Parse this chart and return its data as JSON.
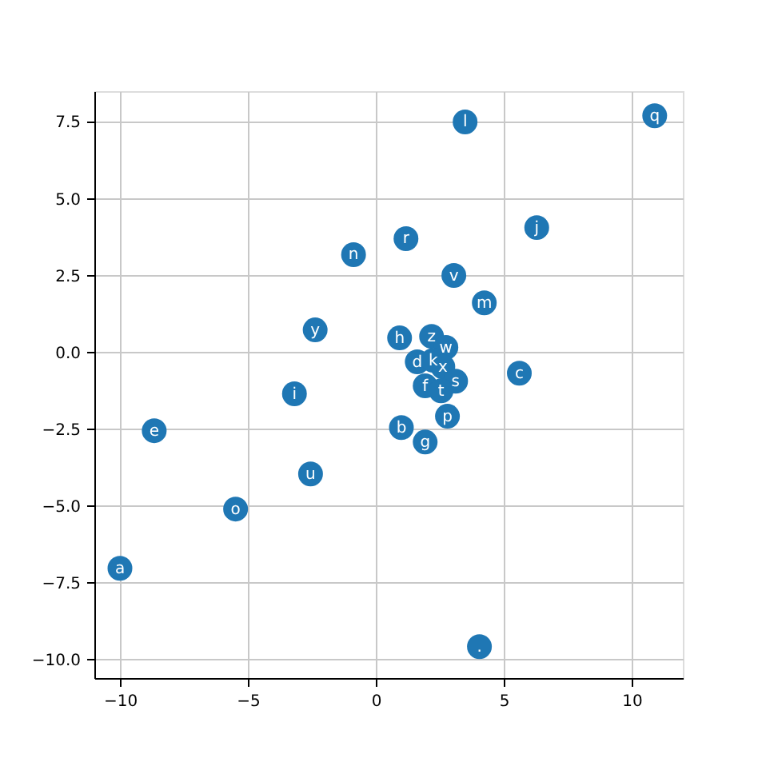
{
  "chart_data": {
    "type": "scatter",
    "marker": "circle",
    "grid": true,
    "xlim": [
      -11,
      12
    ],
    "ylim": [
      -10.6,
      8.5
    ],
    "xticks": [
      {
        "value": -10,
        "label": "−10"
      },
      {
        "value": -5,
        "label": "−5"
      },
      0,
      5,
      10
    ],
    "yticks": [
      {
        "value": -10,
        "label": "−10.0"
      },
      {
        "value": -7.5,
        "label": "−7.5"
      },
      {
        "value": -5,
        "label": "−5.0"
      },
      {
        "value": -2.5,
        "label": "−2.5"
      },
      {
        "value": 0,
        "label": "0.0"
      },
      {
        "value": 2.5,
        "label": "2.5"
      },
      {
        "value": 5,
        "label": "5.0"
      },
      {
        "value": 7.5,
        "label": "7.5"
      }
    ],
    "series": [
      {
        "color": "#1f77b4",
        "x": [
          -10.0,
          -8.66,
          -5.48,
          -2.55,
          -3.18,
          -2.37,
          -0.87,
          1.18,
          3.49,
          10.9,
          6.29,
          3.05,
          4.24,
          0.93,
          2.18,
          2.74,
          1.62,
          2.24,
          2.62,
          3.12,
          5.61,
          1.93,
          2.55,
          2.8,
          1.0,
          1.93,
          4.05
        ],
        "values": [
          -7.03,
          -2.55,
          -5.1,
          -3.96,
          -1.35,
          0.73,
          3.18,
          3.7,
          7.5,
          7.7,
          4.06,
          2.5,
          1.61,
          0.47,
          0.52,
          0.16,
          -0.31,
          -0.26,
          -0.47,
          -0.94,
          -0.68,
          -1.09,
          -1.25,
          -2.08,
          -2.45,
          -2.92,
          -9.58
        ]
      }
    ],
    "annotations": [
      {
        "text": "a",
        "x": -10.0,
        "y": -7.03
      },
      {
        "text": "e",
        "x": -8.66,
        "y": -2.55
      },
      {
        "text": "o",
        "x": -5.48,
        "y": -5.1
      },
      {
        "text": "u",
        "x": -2.55,
        "y": -3.96
      },
      {
        "text": "i",
        "x": -3.18,
        "y": -1.35
      },
      {
        "text": "y",
        "x": -2.37,
        "y": 0.73
      },
      {
        "text": "n",
        "x": -0.87,
        "y": 3.18
      },
      {
        "text": "r",
        "x": 1.18,
        "y": 3.7
      },
      {
        "text": "l",
        "x": 3.49,
        "y": 7.5
      },
      {
        "text": "q",
        "x": 10.9,
        "y": 7.7
      },
      {
        "text": "j",
        "x": 6.29,
        "y": 4.06
      },
      {
        "text": "v",
        "x": 3.05,
        "y": 2.5
      },
      {
        "text": "m",
        "x": 4.24,
        "y": 1.61
      },
      {
        "text": "h",
        "x": 0.93,
        "y": 0.47
      },
      {
        "text": "z",
        "x": 2.18,
        "y": 0.52
      },
      {
        "text": "w",
        "x": 2.74,
        "y": 0.16
      },
      {
        "text": "d",
        "x": 1.62,
        "y": -0.31
      },
      {
        "text": "k",
        "x": 2.24,
        "y": -0.26
      },
      {
        "text": "x",
        "x": 2.62,
        "y": -0.47
      },
      {
        "text": "s",
        "x": 3.12,
        "y": -0.94
      },
      {
        "text": "c",
        "x": 5.61,
        "y": -0.68
      },
      {
        "text": "f",
        "x": 1.93,
        "y": -1.09
      },
      {
        "text": "t",
        "x": 2.55,
        "y": -1.25
      },
      {
        "text": "p",
        "x": 2.8,
        "y": -2.08
      },
      {
        "text": "b",
        "x": 1.0,
        "y": -2.45
      },
      {
        "text": "g",
        "x": 1.93,
        "y": -2.92
      },
      {
        "text": ".",
        "x": 4.05,
        "y": -9.58
      }
    ]
  }
}
